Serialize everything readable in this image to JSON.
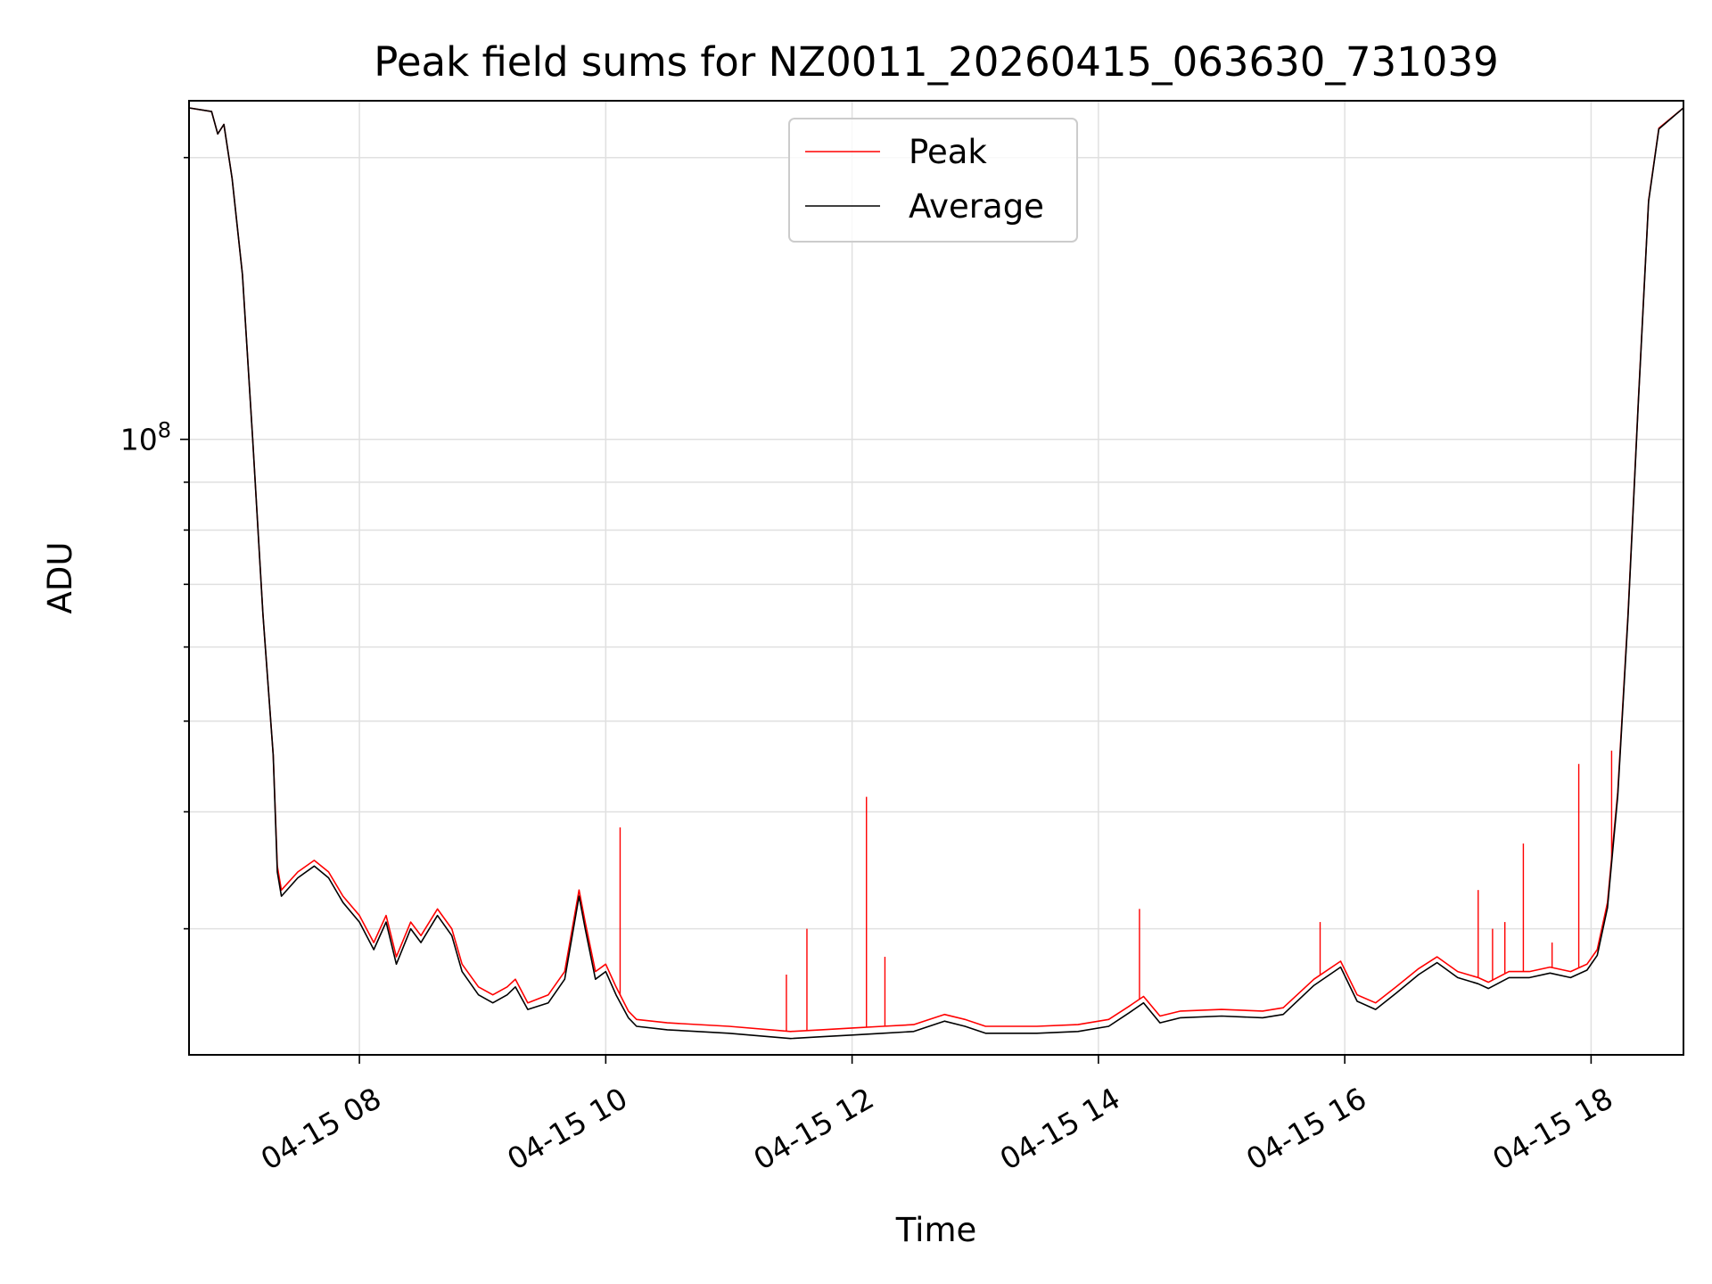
{
  "chart_data": {
    "type": "line",
    "title": "Peak field sums for NZ0011_20260415_063630_731039",
    "xlabel": "Time",
    "ylabel": "ADU",
    "y_scale": "log",
    "grid": true,
    "legend_placement": "upper center",
    "xlim": [
      "2026-04-15 06:37",
      "2026-04-15 18:45"
    ],
    "ylim": [
      22000000,
      230000000
    ],
    "x_ticks": [
      "04-15 08",
      "04-15 10",
      "04-15 12",
      "04-15 14",
      "04-15 16",
      "04-15 18"
    ],
    "x_tick_times": [
      "2026-04-15 08:00",
      "2026-04-15 10:00",
      "2026-04-15 12:00",
      "2026-04-15 14:00",
      "2026-04-15 16:00",
      "2026-04-15 18:00"
    ],
    "y_tick_label": {
      "base": "10",
      "exponent": "8",
      "value": 100000000
    },
    "colors": {
      "Peak": "#ff0000",
      "Average": "#000000"
    },
    "series": [
      {
        "name": "Peak",
        "points": [
          [
            "06:37",
            226000000
          ],
          [
            "06:48",
            224000000
          ],
          [
            "06:51",
            212000000
          ],
          [
            "06:54",
            217000000
          ],
          [
            "06:58",
            190000000
          ],
          [
            "07:03",
            150000000
          ],
          [
            "07:08",
            100000000
          ],
          [
            "07:13",
            65000000
          ],
          [
            "07:18",
            46000000
          ],
          [
            "07:20",
            35000000
          ],
          [
            "07:22",
            33000000
          ],
          [
            "07:30",
            34500000
          ],
          [
            "07:38",
            35500000
          ],
          [
            "07:45",
            34500000
          ],
          [
            "07:52",
            32500000
          ],
          [
            "08:00",
            31000000
          ],
          [
            "08:07",
            29000000
          ],
          [
            "08:13",
            31000000
          ],
          [
            "08:18",
            28000000
          ],
          [
            "08:25",
            30500000
          ],
          [
            "08:30",
            29500000
          ],
          [
            "08:38",
            31500000
          ],
          [
            "08:45",
            30000000
          ],
          [
            "08:50",
            27500000
          ],
          [
            "08:58",
            26000000
          ],
          [
            "09:05",
            25500000
          ],
          [
            "09:12",
            26000000
          ],
          [
            "09:16",
            26500000
          ],
          [
            "09:22",
            25000000
          ],
          [
            "09:32",
            25500000
          ],
          [
            "09:40",
            27000000
          ],
          [
            "09:47",
            33000000
          ],
          [
            "09:50",
            30500000
          ],
          [
            "09:55",
            27000000
          ],
          [
            "10:00",
            27500000
          ],
          [
            "10:05",
            26000000
          ],
          [
            "10:11",
            24500000
          ],
          [
            "10:15",
            24000000
          ],
          [
            "10:30",
            23800000
          ],
          [
            "11:00",
            23600000
          ],
          [
            "11:30",
            23300000
          ],
          [
            "11:45",
            23400000
          ],
          [
            "12:00",
            23500000
          ],
          [
            "12:15",
            23600000
          ],
          [
            "12:30",
            23700000
          ],
          [
            "12:45",
            24300000
          ],
          [
            "12:55",
            24000000
          ],
          [
            "13:05",
            23600000
          ],
          [
            "13:30",
            23600000
          ],
          [
            "13:50",
            23700000
          ],
          [
            "14:05",
            24000000
          ],
          [
            "14:15",
            24800000
          ],
          [
            "14:22",
            25400000
          ],
          [
            "14:30",
            24200000
          ],
          [
            "14:40",
            24500000
          ],
          [
            "15:00",
            24600000
          ],
          [
            "15:20",
            24500000
          ],
          [
            "15:30",
            24700000
          ],
          [
            "15:45",
            26500000
          ],
          [
            "15:58",
            27700000
          ],
          [
            "16:06",
            25500000
          ],
          [
            "16:15",
            25000000
          ],
          [
            "16:25",
            26000000
          ],
          [
            "16:36",
            27200000
          ],
          [
            "16:45",
            28000000
          ],
          [
            "16:55",
            27000000
          ],
          [
            "17:05",
            26600000
          ],
          [
            "17:10",
            26300000
          ],
          [
            "17:20",
            27000000
          ],
          [
            "17:30",
            27000000
          ],
          [
            "17:40",
            27300000
          ],
          [
            "17:50",
            27000000
          ],
          [
            "17:58",
            27500000
          ],
          [
            "18:03",
            28500000
          ],
          [
            "18:08",
            32000000
          ],
          [
            "18:13",
            42000000
          ],
          [
            "18:18",
            65000000
          ],
          [
            "18:23",
            110000000
          ],
          [
            "18:28",
            180000000
          ],
          [
            "18:33",
            215000000
          ],
          [
            "18:45",
            226000000
          ]
        ],
        "spikes": [
          [
            "10:07",
            38500000
          ],
          [
            "11:28",
            26800000
          ],
          [
            "11:38",
            30000000
          ],
          [
            "12:07",
            41500000
          ],
          [
            "12:16",
            28000000
          ],
          [
            "14:20",
            31500000
          ],
          [
            "15:48",
            30500000
          ],
          [
            "17:05",
            33000000
          ],
          [
            "17:12",
            30000000
          ],
          [
            "17:18",
            30500000
          ],
          [
            "17:27",
            37000000
          ],
          [
            "17:41",
            29000000
          ],
          [
            "17:54",
            45000000
          ],
          [
            "18:10",
            46500000
          ]
        ]
      },
      {
        "name": "Average",
        "points": [
          [
            "06:37",
            226000000
          ],
          [
            "06:48",
            224000000
          ],
          [
            "06:51",
            212000000
          ],
          [
            "06:54",
            217000000
          ],
          [
            "06:58",
            190000000
          ],
          [
            "07:03",
            150000000
          ],
          [
            "07:08",
            100000000
          ],
          [
            "07:13",
            65000000
          ],
          [
            "07:18",
            46000000
          ],
          [
            "07:20",
            34500000
          ],
          [
            "07:22",
            32500000
          ],
          [
            "07:30",
            34000000
          ],
          [
            "07:38",
            35000000
          ],
          [
            "07:45",
            34000000
          ],
          [
            "07:52",
            32000000
          ],
          [
            "08:00",
            30500000
          ],
          [
            "08:07",
            28500000
          ],
          [
            "08:13",
            30500000
          ],
          [
            "08:18",
            27500000
          ],
          [
            "08:25",
            30000000
          ],
          [
            "08:30",
            29000000
          ],
          [
            "08:38",
            31000000
          ],
          [
            "08:45",
            29500000
          ],
          [
            "08:50",
            27000000
          ],
          [
            "08:58",
            25500000
          ],
          [
            "09:05",
            25000000
          ],
          [
            "09:12",
            25500000
          ],
          [
            "09:16",
            26000000
          ],
          [
            "09:22",
            24600000
          ],
          [
            "09:32",
            25000000
          ],
          [
            "09:40",
            26500000
          ],
          [
            "09:47",
            32500000
          ],
          [
            "09:50",
            30000000
          ],
          [
            "09:55",
            26500000
          ],
          [
            "10:00",
            27000000
          ],
          [
            "10:05",
            25500000
          ],
          [
            "10:11",
            24100000
          ],
          [
            "10:15",
            23600000
          ],
          [
            "10:30",
            23400000
          ],
          [
            "11:00",
            23200000
          ],
          [
            "11:30",
            22900000
          ],
          [
            "11:45",
            23000000
          ],
          [
            "12:00",
            23100000
          ],
          [
            "12:15",
            23200000
          ],
          [
            "12:30",
            23300000
          ],
          [
            "12:45",
            23900000
          ],
          [
            "12:55",
            23600000
          ],
          [
            "13:05",
            23200000
          ],
          [
            "13:30",
            23200000
          ],
          [
            "13:50",
            23300000
          ],
          [
            "14:05",
            23600000
          ],
          [
            "14:15",
            24400000
          ],
          [
            "14:22",
            25000000
          ],
          [
            "14:30",
            23800000
          ],
          [
            "14:40",
            24100000
          ],
          [
            "15:00",
            24200000
          ],
          [
            "15:20",
            24100000
          ],
          [
            "15:30",
            24300000
          ],
          [
            "15:45",
            26100000
          ],
          [
            "15:58",
            27300000
          ],
          [
            "16:06",
            25100000
          ],
          [
            "16:15",
            24600000
          ],
          [
            "16:25",
            25600000
          ],
          [
            "16:36",
            26800000
          ],
          [
            "16:45",
            27600000
          ],
          [
            "16:55",
            26600000
          ],
          [
            "17:05",
            26200000
          ],
          [
            "17:10",
            25900000
          ],
          [
            "17:20",
            26600000
          ],
          [
            "17:30",
            26600000
          ],
          [
            "17:40",
            26900000
          ],
          [
            "17:50",
            26600000
          ],
          [
            "17:58",
            27100000
          ],
          [
            "18:03",
            28100000
          ],
          [
            "18:08",
            31600000
          ],
          [
            "18:13",
            41600000
          ],
          [
            "18:18",
            64600000
          ],
          [
            "18:23",
            109600000
          ],
          [
            "18:28",
            179600000
          ],
          [
            "18:33",
            214600000
          ],
          [
            "18:45",
            226000000
          ]
        ]
      }
    ]
  }
}
